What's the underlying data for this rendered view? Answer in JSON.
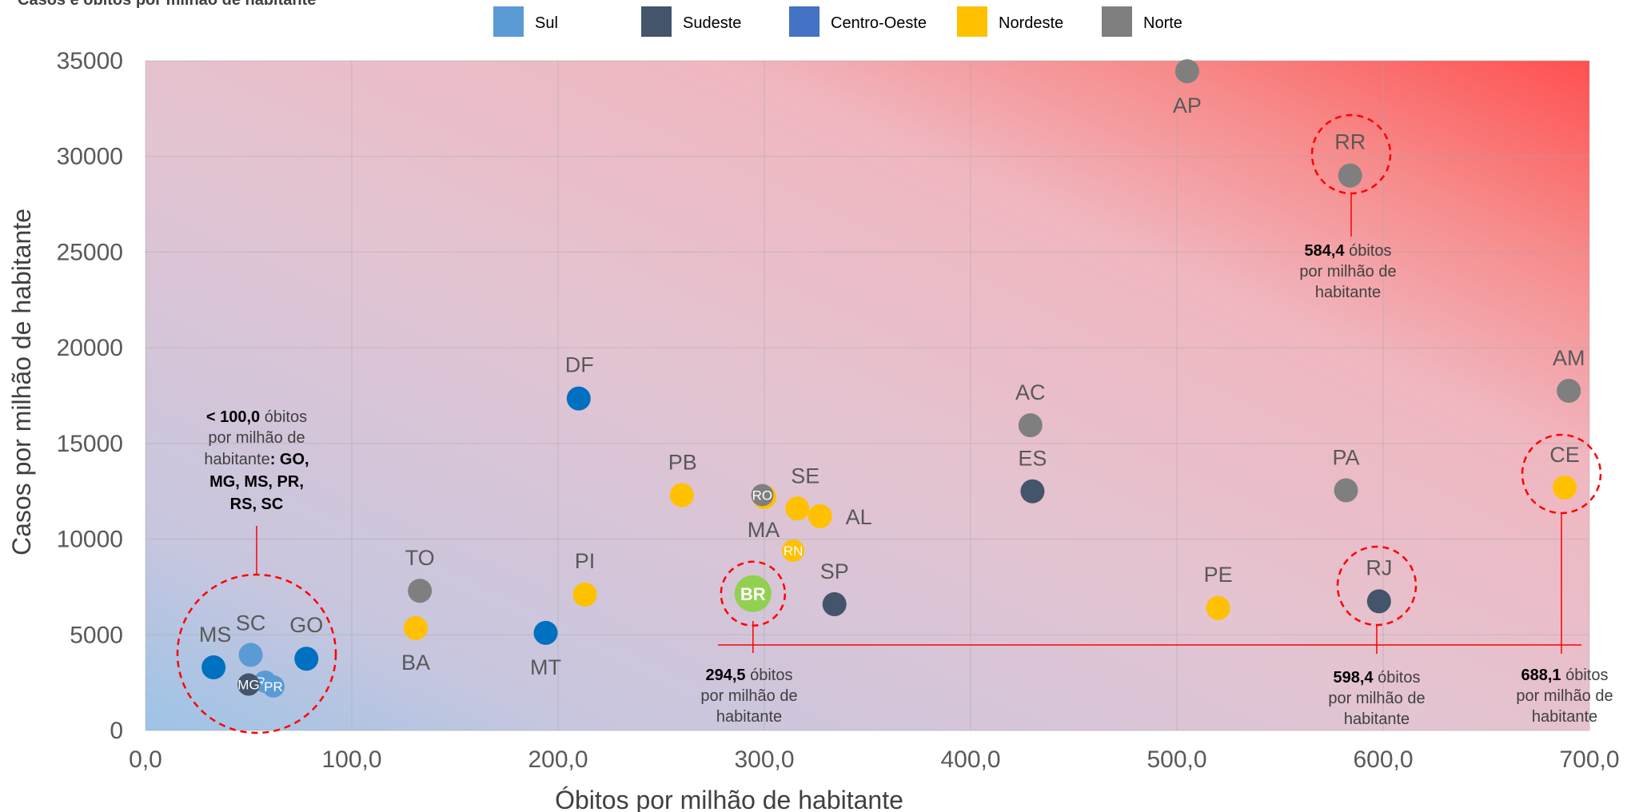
{
  "chart_data": {
    "type": "scatter",
    "title": "Casos e óbitos por milhão de habitante",
    "xlabel": "Óbitos por milhão de habitante",
    "ylabel": "Casos por milhão de habitante",
    "xlim": [
      0,
      700
    ],
    "ylim": [
      0,
      35000
    ],
    "x_ticks": [
      "0,0",
      "100,0",
      "200,0",
      "300,0",
      "400,0",
      "500,0",
      "600,0",
      "700,0"
    ],
    "y_ticks": [
      "0",
      "5000",
      "10000",
      "15000",
      "20000",
      "25000",
      "30000",
      "35000"
    ],
    "grid": true,
    "legend_position": "top",
    "colors": {
      "Sul": "#5b9bd5",
      "Sudeste": "#44546a",
      "Centro-Oeste": "#0070c0",
      "Centro-Oeste-legend": "#4472c4",
      "Nordeste": "#ffc000",
      "Norte": "#7f7f7f",
      "Brasil": "#92d050",
      "highlight": "#ff0000"
    },
    "series": [
      {
        "name": "Sul",
        "points": [
          {
            "label": "SC",
            "x": 51,
            "y": 3950
          },
          {
            "label": "RS",
            "x": 58,
            "y": 2550
          },
          {
            "label": "PR",
            "x": 62,
            "y": 2300
          }
        ]
      },
      {
        "name": "Sudeste",
        "points": [
          {
            "label": "MG",
            "x": 50,
            "y": 2400
          },
          {
            "label": "SP",
            "x": 334,
            "y": 6600
          },
          {
            "label": "ES",
            "x": 430,
            "y": 12500
          },
          {
            "label": "RJ",
            "x": 598,
            "y": 6750
          }
        ]
      },
      {
        "name": "Centro-Oeste",
        "points": [
          {
            "label": "MS",
            "x": 33,
            "y": 3300
          },
          {
            "label": "GO",
            "x": 78,
            "y": 3750
          },
          {
            "label": "MT",
            "x": 194,
            "y": 5100
          },
          {
            "label": "DF",
            "x": 210,
            "y": 17350
          }
        ]
      },
      {
        "name": "Nordeste",
        "points": [
          {
            "label": "BA",
            "x": 131,
            "y": 5350
          },
          {
            "label": "PI",
            "x": 213,
            "y": 7100
          },
          {
            "label": "PB",
            "x": 260,
            "y": 12300
          },
          {
            "label": "MA",
            "x": 300,
            "y": 12200
          },
          {
            "label": "SE",
            "x": 316,
            "y": 11600
          },
          {
            "label": "RN",
            "x": 314,
            "y": 9400
          },
          {
            "label": "AL",
            "x": 327,
            "y": 11200
          },
          {
            "label": "PE",
            "x": 520,
            "y": 6400
          },
          {
            "label": "CE",
            "x": 688,
            "y": 12700
          }
        ]
      },
      {
        "name": "Norte",
        "points": [
          {
            "label": "TO",
            "x": 133,
            "y": 7300
          },
          {
            "label": "RO",
            "x": 299,
            "y": 12300
          },
          {
            "label": "AC",
            "x": 429,
            "y": 15950
          },
          {
            "label": "AP",
            "x": 505,
            "y": 34450
          },
          {
            "label": "PA",
            "x": 582,
            "y": 12550
          },
          {
            "label": "RR",
            "x": 584,
            "y": 29000
          },
          {
            "label": "AM",
            "x": 690,
            "y": 17750
          }
        ]
      }
    ],
    "national_point": {
      "label": "BR",
      "x": 294.5,
      "y": 7150
    },
    "annotations": {
      "br": {
        "bold": "294,5",
        "line1": " óbitos",
        "line2": "por milhão de",
        "line3": "habitante"
      },
      "rr": {
        "bold": "584,4",
        "line1": " óbitos",
        "line2": "por milhão de",
        "line3": "habitante"
      },
      "rj": {
        "bold": "598,4",
        "line1": " óbitos",
        "line2": "por milhão de",
        "line3": "habitante"
      },
      "ce": {
        "bold": "688,1",
        "line1": " óbitos",
        "line2": "por milhão de",
        "line3": "habitante"
      },
      "low": {
        "bold1": "< 100,0",
        "text1": " óbitos",
        "line2": "por milhão de",
        "line3a": "habitante",
        "line3b": ": GO,",
        "line4": "MG, MS, PR,",
        "line5": "RS, SC"
      }
    }
  }
}
